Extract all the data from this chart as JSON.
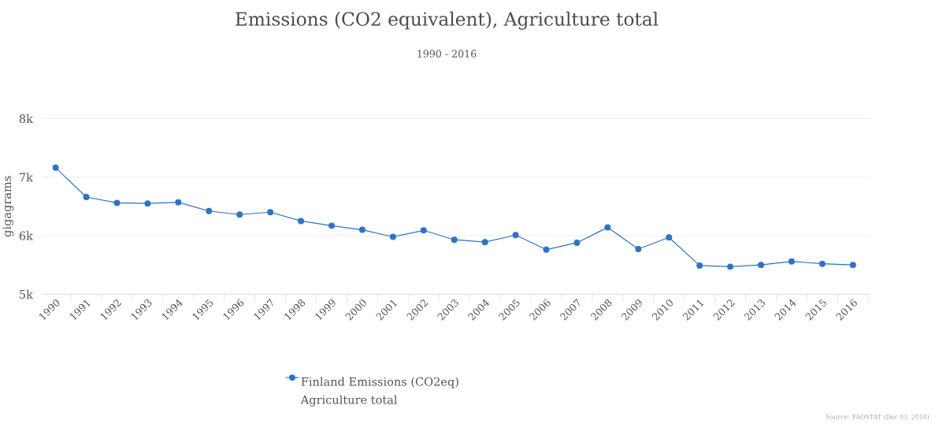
{
  "chart_data": {
    "type": "line",
    "title": "Emissions (CO2 equivalent), Agriculture total",
    "subtitle": "1990 - 2016",
    "ylabel": "gigagrams",
    "categories": [
      "1990",
      "1991",
      "1992",
      "1993",
      "1994",
      "1995",
      "1996",
      "1997",
      "1998",
      "1999",
      "2000",
      "2001",
      "2002",
      "2003",
      "2004",
      "2005",
      "2006",
      "2007",
      "2008",
      "2009",
      "2010",
      "2011",
      "2012",
      "2013",
      "2014",
      "2015",
      "2016"
    ],
    "series": [
      {
        "name": "Finland Emissions (CO2eq) Agriculture total",
        "color": "#2f72c4",
        "values": [
          7160,
          6660,
          6560,
          6550,
          6570,
          6420,
          6360,
          6400,
          6250,
          6170,
          6100,
          5980,
          6090,
          5930,
          5890,
          6010,
          5760,
          5880,
          6140,
          5770,
          5970,
          5490,
          5470,
          5500,
          5560,
          5520,
          5500
        ]
      }
    ],
    "ylim": [
      5000,
      8000
    ],
    "yticks": [
      {
        "value": 5000,
        "label": "5k"
      },
      {
        "value": 6000,
        "label": "6k"
      },
      {
        "value": 7000,
        "label": "7k"
      },
      {
        "value": 8000,
        "label": "8k"
      }
    ],
    "grid": "y",
    "legend": "bottom",
    "marker": "circle",
    "line_style": "solid",
    "annotations": [
      "Source: FAOSTAT (Dec 03, 2018)"
    ]
  }
}
